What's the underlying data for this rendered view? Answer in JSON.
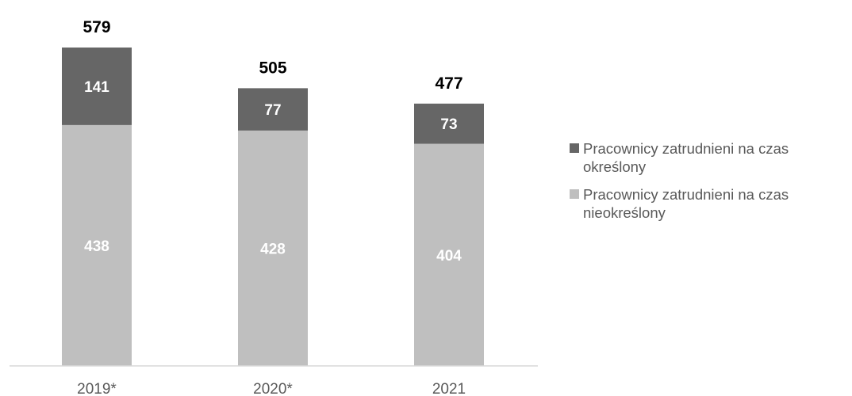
{
  "chart_data": {
    "type": "bar",
    "stacked": true,
    "categories": [
      "2019*",
      "2020*",
      "2021"
    ],
    "series": [
      {
        "name": "Pracownicy zatrudnieni na czas nieokreślony",
        "values": [
          438,
          428,
          404
        ],
        "color": "#BFBFBF",
        "label_color": "#FFFFFF"
      },
      {
        "name": "Pracownicy zatrudnieni na czas określony",
        "values": [
          141,
          77,
          73
        ],
        "color": "#666666",
        "label_color": "#FFFFFF"
      }
    ],
    "totals": [
      579,
      505,
      477
    ],
    "title": "",
    "xlabel": "",
    "ylabel": "",
    "ylim": [
      0,
      579
    ],
    "grid": false,
    "legend_position": "right"
  },
  "legend": [
    {
      "label": "Pracownicy zatrudnieni na czas określony",
      "color": "#666666"
    },
    {
      "label": "Pracownicy zatrudnieni na czas nieokreślony",
      "color": "#BFBFBF"
    }
  ]
}
